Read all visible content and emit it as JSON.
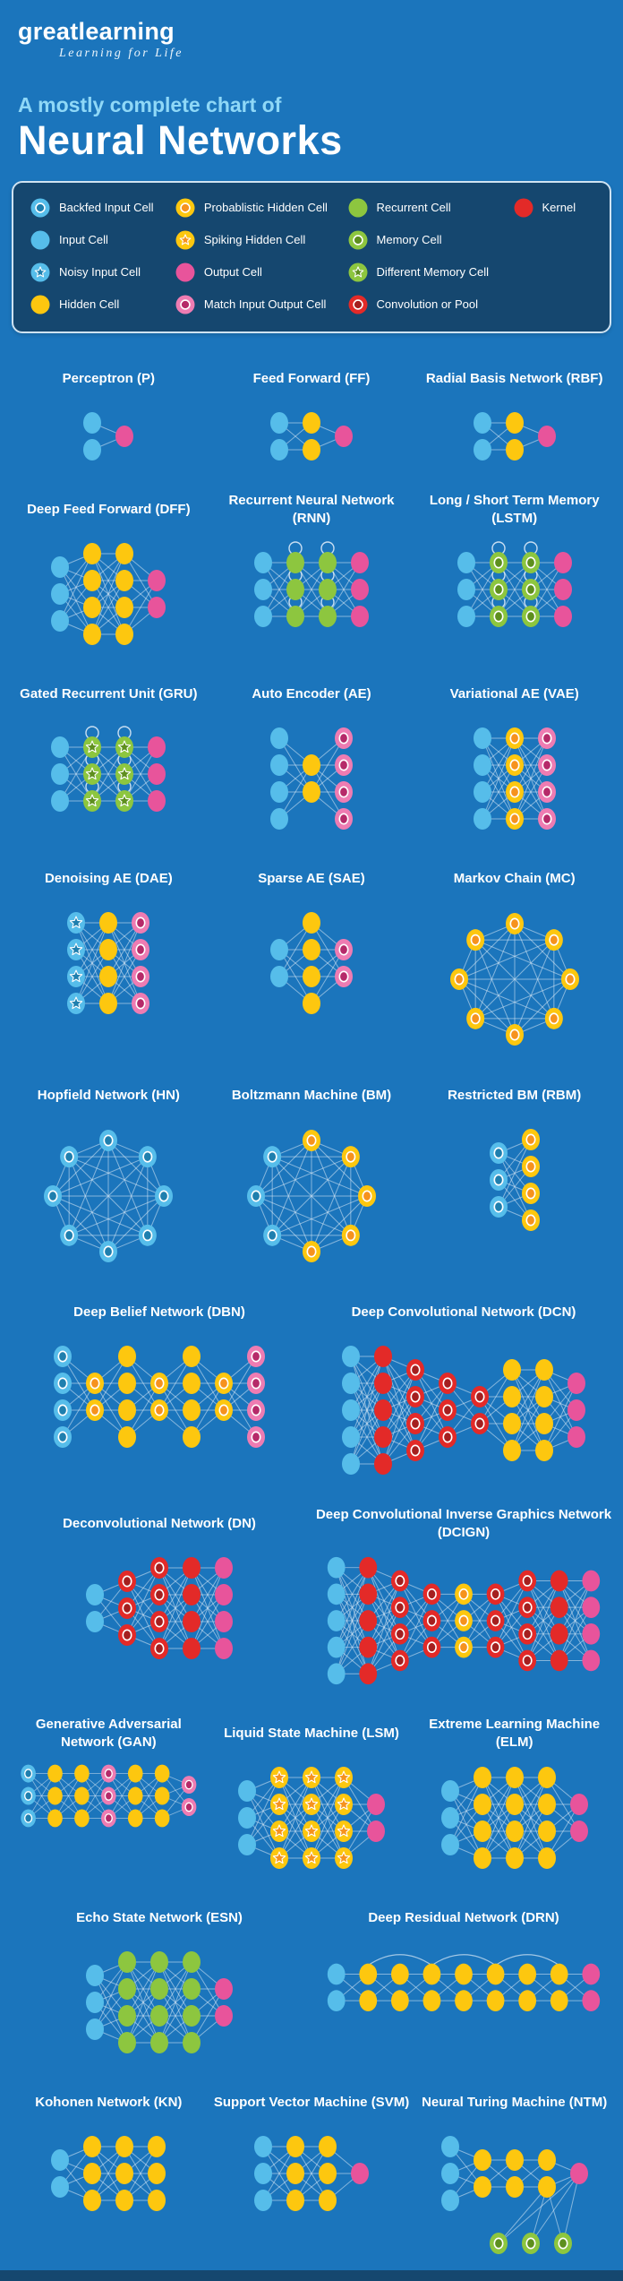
{
  "logo": {
    "name": "greatlearning",
    "tagline": "Learning for Life"
  },
  "title": {
    "kicker": "A mostly complete chart of",
    "main": "Neural Networks"
  },
  "colors": {
    "page_bg": "#1b75bc",
    "panel_bg": "#15476f",
    "panel_border": "#cfe3f2",
    "kicker_text": "#8fd8f7",
    "edge": "#dbeaf7",
    "cells": {
      "input": {
        "fill": "#56bdea"
      },
      "backfed_input": {
        "fill": "#56bdea",
        "inner": "#1f7fae"
      },
      "noisy_input": {
        "fill": "#56bdea",
        "star": "#1f7fae"
      },
      "hidden": {
        "fill": "#fdc70f"
      },
      "probablistic_hidden": {
        "fill": "#fdc70f",
        "inner": "#f6921e"
      },
      "spiking_hidden": {
        "fill": "#fdc70f",
        "star": "#f6921e"
      },
      "output": {
        "fill": "#e8549b"
      },
      "match_io": {
        "fill": "#ee7cb2",
        "inner": "#b62a69"
      },
      "recurrent": {
        "fill": "#8dc63f"
      },
      "memory": {
        "fill": "#8dc63f",
        "inner": "#5e8f1e"
      },
      "diff_memory": {
        "fill": "#8dc63f",
        "star": "#5e8f1e"
      },
      "kernel": {
        "fill": "#e32a28"
      },
      "conv": {
        "fill": "#e32a28",
        "inner": "#a51f1f"
      }
    }
  },
  "legend": {
    "columns": [
      [
        {
          "type": "backfed_input",
          "label": "Backfed Input Cell"
        },
        {
          "type": "input",
          "label": "Input Cell"
        },
        {
          "type": "noisy_input",
          "label": "Noisy Input Cell"
        },
        {
          "type": "hidden",
          "label": "Hidden Cell"
        }
      ],
      [
        {
          "type": "probablistic_hidden",
          "label": "Probablistic Hidden Cell"
        },
        {
          "type": "spiking_hidden",
          "label": "Spiking Hidden Cell"
        },
        {
          "type": "output",
          "label": "Output Cell"
        },
        {
          "type": "match_io",
          "label": "Match Input Output Cell"
        }
      ],
      [
        {
          "type": "recurrent",
          "label": "Recurrent Cell"
        },
        {
          "type": "memory",
          "label": "Memory Cell"
        },
        {
          "type": "diff_memory",
          "label": "Different Memory Cell"
        },
        {
          "type": "conv",
          "label": "Convolution or Pool"
        }
      ],
      [
        {
          "type": "kernel",
          "label": "Kernel"
        }
      ]
    ]
  },
  "networks": [
    {
      "title": "Perceptron (P)",
      "layout": "layered",
      "layers": [
        {
          "type": "input",
          "n": 2
        },
        {
          "type": "output",
          "n": 1
        }
      ]
    },
    {
      "title": "Feed Forward (FF)",
      "layout": "layered",
      "layers": [
        {
          "type": "input",
          "n": 2
        },
        {
          "type": "hidden",
          "n": 2
        },
        {
          "type": "output",
          "n": 1
        }
      ]
    },
    {
      "title": "Radial Basis Network (RBF)",
      "layout": "layered",
      "layers": [
        {
          "type": "input",
          "n": 2
        },
        {
          "type": "hidden",
          "n": 2
        },
        {
          "type": "output",
          "n": 1
        }
      ]
    },
    {
      "title": "Deep Feed Forward (DFF)",
      "layout": "layered",
      "layers": [
        {
          "type": "input",
          "n": 3
        },
        {
          "type": "hidden",
          "n": 4
        },
        {
          "type": "hidden",
          "n": 4
        },
        {
          "type": "output",
          "n": 2
        }
      ]
    },
    {
      "title": "Recurrent Neural Network (RNN)",
      "layout": "layered",
      "loops": true,
      "layers": [
        {
          "type": "input",
          "n": 3
        },
        {
          "type": "recurrent",
          "n": 3
        },
        {
          "type": "recurrent",
          "n": 3
        },
        {
          "type": "output",
          "n": 3
        }
      ]
    },
    {
      "title": "Long / Short Term Memory (LSTM)",
      "layout": "layered",
      "loops": true,
      "layers": [
        {
          "type": "input",
          "n": 3
        },
        {
          "type": "memory",
          "n": 3
        },
        {
          "type": "memory",
          "n": 3
        },
        {
          "type": "output",
          "n": 3
        }
      ]
    },
    {
      "title": "Gated Recurrent Unit (GRU)",
      "layout": "layered",
      "loops": true,
      "layers": [
        {
          "type": "input",
          "n": 3
        },
        {
          "type": "diff_memory",
          "n": 3
        },
        {
          "type": "diff_memory",
          "n": 3
        },
        {
          "type": "output",
          "n": 3
        }
      ]
    },
    {
      "title": "Auto Encoder (AE)",
      "layout": "layered",
      "layers": [
        {
          "type": "input",
          "n": 4
        },
        {
          "type": "hidden",
          "n": 2
        },
        {
          "type": "match_io",
          "n": 4
        }
      ]
    },
    {
      "title": "Variational AE (VAE)",
      "layout": "layered",
      "layers": [
        {
          "type": "input",
          "n": 4
        },
        {
          "type": "probablistic_hidden",
          "n": 4
        },
        {
          "type": "match_io",
          "n": 4
        }
      ]
    },
    {
      "title": "Denoising AE (DAE)",
      "layout": "layered",
      "layers": [
        {
          "type": "noisy_input",
          "n": 4
        },
        {
          "type": "hidden",
          "n": 4
        },
        {
          "type": "match_io",
          "n": 4
        }
      ]
    },
    {
      "title": "Sparse AE (SAE)",
      "layout": "layered",
      "layers": [
        {
          "type": "input",
          "n": 2
        },
        {
          "type": "hidden",
          "n": 4
        },
        {
          "type": "match_io",
          "n": 2
        }
      ]
    },
    {
      "title": "Markov Chain (MC)",
      "layout": "circle",
      "layers": [
        {
          "type": "probablistic_hidden",
          "n": 8
        }
      ]
    },
    {
      "title": "Hopfield Network (HN)",
      "layout": "circle",
      "layers": [
        {
          "type": "backfed_input",
          "n": 8
        }
      ]
    },
    {
      "title": "Boltzmann Machine (BM)",
      "layout": "circle",
      "layers": [
        {
          "type": "probablistic_hidden",
          "n": 5
        },
        {
          "type": "backfed_input",
          "n": 3
        }
      ]
    },
    {
      "title": "Restricted BM (RBM)",
      "layout": "layered",
      "layers": [
        {
          "type": "backfed_input",
          "n": 3
        },
        {
          "type": "probablistic_hidden",
          "n": 4
        }
      ]
    },
    {
      "title": "Deep Belief Network (DBN)",
      "layout": "layered",
      "layers": [
        {
          "type": "backfed_input",
          "n": 4
        },
        {
          "type": "probablistic_hidden",
          "n": 2
        },
        {
          "type": "hidden",
          "n": 4
        },
        {
          "type": "probablistic_hidden",
          "n": 2
        },
        {
          "type": "hidden",
          "n": 4
        },
        {
          "type": "probablistic_hidden",
          "n": 2
        },
        {
          "type": "match_io",
          "n": 4
        }
      ]
    },
    {
      "title": "Deep Convolutional Network (DCN)",
      "layout": "layered",
      "layers": [
        {
          "type": "input",
          "n": 5
        },
        {
          "type": "kernel",
          "n": 5
        },
        {
          "type": "conv",
          "n": 4
        },
        {
          "type": "conv",
          "n": 3
        },
        {
          "type": "conv",
          "n": 2
        },
        {
          "type": "hidden",
          "n": 4
        },
        {
          "type": "hidden",
          "n": 4
        },
        {
          "type": "output",
          "n": 3
        }
      ]
    },
    {
      "title": "Deconvolutional Network (DN)",
      "layout": "layered",
      "layers": [
        {
          "type": "input",
          "n": 2
        },
        {
          "type": "conv",
          "n": 3
        },
        {
          "type": "conv",
          "n": 4
        },
        {
          "type": "kernel",
          "n": 4
        },
        {
          "type": "output",
          "n": 4
        }
      ]
    },
    {
      "title": "Deep Convolutional Inverse Graphics Network (DCIGN)",
      "layout": "layered",
      "layers": [
        {
          "type": "input",
          "n": 5
        },
        {
          "type": "kernel",
          "n": 5
        },
        {
          "type": "conv",
          "n": 4
        },
        {
          "type": "conv",
          "n": 3
        },
        {
          "type": "probablistic_hidden",
          "n": 3
        },
        {
          "type": "conv",
          "n": 3
        },
        {
          "type": "conv",
          "n": 4
        },
        {
          "type": "kernel",
          "n": 4
        },
        {
          "type": "output",
          "n": 4
        }
      ]
    },
    {
      "title": "Generative Adversarial Network (GAN)",
      "layout": "layered",
      "layers": [
        {
          "type": "backfed_input",
          "n": 3
        },
        {
          "type": "hidden",
          "n": 3
        },
        {
          "type": "hidden",
          "n": 3
        },
        {
          "type": "match_io",
          "n": 3
        },
        {
          "type": "hidden",
          "n": 3
        },
        {
          "type": "hidden",
          "n": 3
        },
        {
          "type": "match_io",
          "n": 2
        }
      ]
    },
    {
      "title": "Liquid State Machine (LSM)",
      "layout": "layered",
      "layers": [
        {
          "type": "input",
          "n": 3
        },
        {
          "type": "spiking_hidden",
          "n": 4
        },
        {
          "type": "spiking_hidden",
          "n": 4
        },
        {
          "type": "spiking_hidden",
          "n": 4
        },
        {
          "type": "output",
          "n": 2
        }
      ]
    },
    {
      "title": "Extreme Learning Machine (ELM)",
      "layout": "layered",
      "layers": [
        {
          "type": "input",
          "n": 3
        },
        {
          "type": "hidden",
          "n": 4
        },
        {
          "type": "hidden",
          "n": 4
        },
        {
          "type": "hidden",
          "n": 4
        },
        {
          "type": "output",
          "n": 2
        }
      ]
    },
    {
      "title": "Echo State Network (ESN)",
      "layout": "layered",
      "layers": [
        {
          "type": "input",
          "n": 3
        },
        {
          "type": "recurrent",
          "n": 4
        },
        {
          "type": "recurrent",
          "n": 4
        },
        {
          "type": "recurrent",
          "n": 4
        },
        {
          "type": "output",
          "n": 2
        }
      ]
    },
    {
      "title": "Deep Residual Network (DRN)",
      "layout": "layered",
      "arcs": true,
      "layers": [
        {
          "type": "input",
          "n": 2
        },
        {
          "type": "hidden",
          "n": 2
        },
        {
          "type": "hidden",
          "n": 2
        },
        {
          "type": "hidden",
          "n": 2
        },
        {
          "type": "hidden",
          "n": 2
        },
        {
          "type": "hidden",
          "n": 2
        },
        {
          "type": "hidden",
          "n": 2
        },
        {
          "type": "hidden",
          "n": 2
        },
        {
          "type": "output",
          "n": 2
        }
      ]
    },
    {
      "title": "Kohonen Network (KN)",
      "layout": "layered",
      "layers": [
        {
          "type": "input",
          "n": 2
        },
        {
          "type": "hidden",
          "n": 3
        },
        {
          "type": "hidden",
          "n": 3
        },
        {
          "type": "hidden",
          "n": 3
        }
      ]
    },
    {
      "title": "Support Vector Machine (SVM)",
      "layout": "layered",
      "layers": [
        {
          "type": "input",
          "n": 3
        },
        {
          "type": "hidden",
          "n": 3
        },
        {
          "type": "hidden",
          "n": 3
        },
        {
          "type": "output",
          "n": 1
        }
      ]
    },
    {
      "title": "Neural Turing Machine (NTM)",
      "layout": "layered",
      "memory_row": 3,
      "layers": [
        {
          "type": "input",
          "n": 3
        },
        {
          "type": "hidden",
          "n": 2
        },
        {
          "type": "hidden",
          "n": 2
        },
        {
          "type": "hidden",
          "n": 2
        },
        {
          "type": "output",
          "n": 1
        }
      ]
    }
  ],
  "grid_rows": [
    [
      0,
      1,
      2
    ],
    [
      3,
      4,
      5
    ],
    [
      6,
      7,
      8
    ],
    [
      9,
      10,
      11
    ],
    [
      12,
      13,
      14
    ],
    [
      15,
      16
    ],
    [
      17,
      18
    ],
    [
      19,
      20,
      21
    ],
    [
      22,
      23
    ],
    [
      24,
      25,
      26
    ]
  ]
}
